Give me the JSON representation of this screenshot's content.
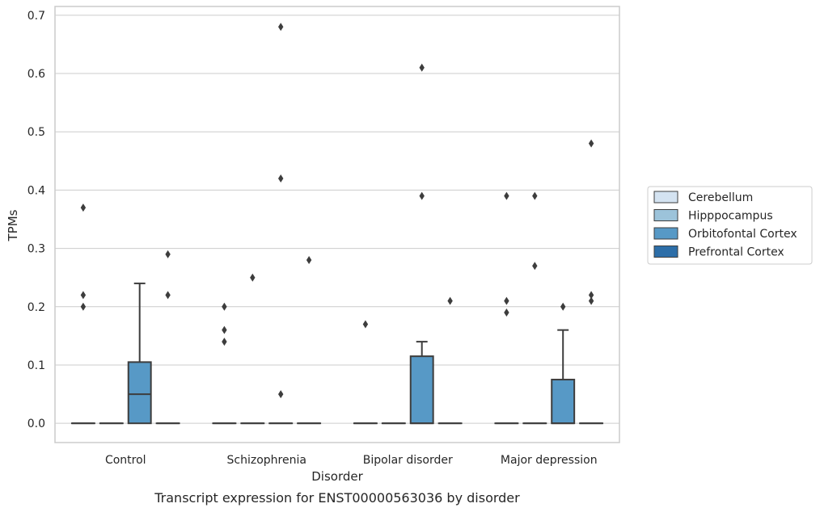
{
  "chart_data": {
    "type": "box",
    "xlabel": "Disorder",
    "ylabel": "TPMs",
    "caption": "Transcript expression for ENST00000563036 by disorder",
    "ylim": [
      -0.033,
      0.715
    ],
    "yticks": [
      "0.0",
      "0.1",
      "0.2",
      "0.3",
      "0.4",
      "0.5",
      "0.6",
      "0.7"
    ],
    "grid": true,
    "legend_position": "right",
    "categories": [
      "Control",
      "Schizophrenia",
      "Bipolar disorder",
      "Major depression"
    ],
    "series": [
      {
        "name": "Cerebellum",
        "color": "#d4e3f1",
        "boxes": [
          {
            "min": 0,
            "q1": 0,
            "median": 0,
            "q3": 0,
            "max": 0,
            "outliers": [
              0.2,
              0.22,
              0.37
            ]
          },
          {
            "min": 0,
            "q1": 0,
            "median": 0,
            "q3": 0,
            "max": 0,
            "outliers": [
              0.14,
              0.16,
              0.2
            ]
          },
          {
            "min": 0,
            "q1": 0,
            "median": 0,
            "q3": 0,
            "max": 0,
            "outliers": [
              0.17
            ]
          },
          {
            "min": 0,
            "q1": 0,
            "median": 0,
            "q3": 0,
            "max": 0,
            "outliers": [
              0.19,
              0.21,
              0.39
            ]
          }
        ]
      },
      {
        "name": "Hipppocampus",
        "color": "#9cc3da",
        "boxes": [
          {
            "min": 0,
            "q1": 0,
            "median": 0,
            "q3": 0,
            "max": 0,
            "outliers": []
          },
          {
            "min": 0,
            "q1": 0,
            "median": 0,
            "q3": 0,
            "max": 0,
            "outliers": [
              0.25
            ]
          },
          {
            "min": 0,
            "q1": 0,
            "median": 0,
            "q3": 0,
            "max": 0,
            "outliers": []
          },
          {
            "min": 0,
            "q1": 0,
            "median": 0,
            "q3": 0,
            "max": 0,
            "outliers": [
              0.27,
              0.39
            ]
          }
        ]
      },
      {
        "name": "Orbitofontal Cortex",
        "color": "#5799c6",
        "boxes": [
          {
            "min": 0,
            "q1": 0,
            "median": 0.05,
            "q3": 0.105,
            "max": 0.24,
            "outliers": []
          },
          {
            "min": 0,
            "q1": 0,
            "median": 0,
            "q3": 0,
            "max": 0,
            "outliers": [
              0.05,
              0.42,
              0.68
            ]
          },
          {
            "min": 0,
            "q1": 0,
            "median": 0,
            "q3": 0.115,
            "max": 0.14,
            "outliers": [
              0.39,
              0.61
            ]
          },
          {
            "min": 0,
            "q1": 0,
            "median": 0,
            "q3": 0.075,
            "max": 0.16,
            "outliers": [
              0.2
            ]
          }
        ]
      },
      {
        "name": "Prefrontal Cortex",
        "color": "#2d6ea8",
        "boxes": [
          {
            "min": 0,
            "q1": 0,
            "median": 0,
            "q3": 0,
            "max": 0,
            "outliers": [
              0.22,
              0.29
            ]
          },
          {
            "min": 0,
            "q1": 0,
            "median": 0,
            "q3": 0,
            "max": 0,
            "outliers": [
              0.28
            ]
          },
          {
            "min": 0,
            "q1": 0,
            "median": 0,
            "q3": 0,
            "max": 0,
            "outliers": [
              0.21
            ]
          },
          {
            "min": 0,
            "q1": 0,
            "median": 0,
            "q3": 0,
            "max": 0,
            "outliers": [
              0.21,
              0.22,
              0.48
            ]
          }
        ]
      }
    ]
  }
}
